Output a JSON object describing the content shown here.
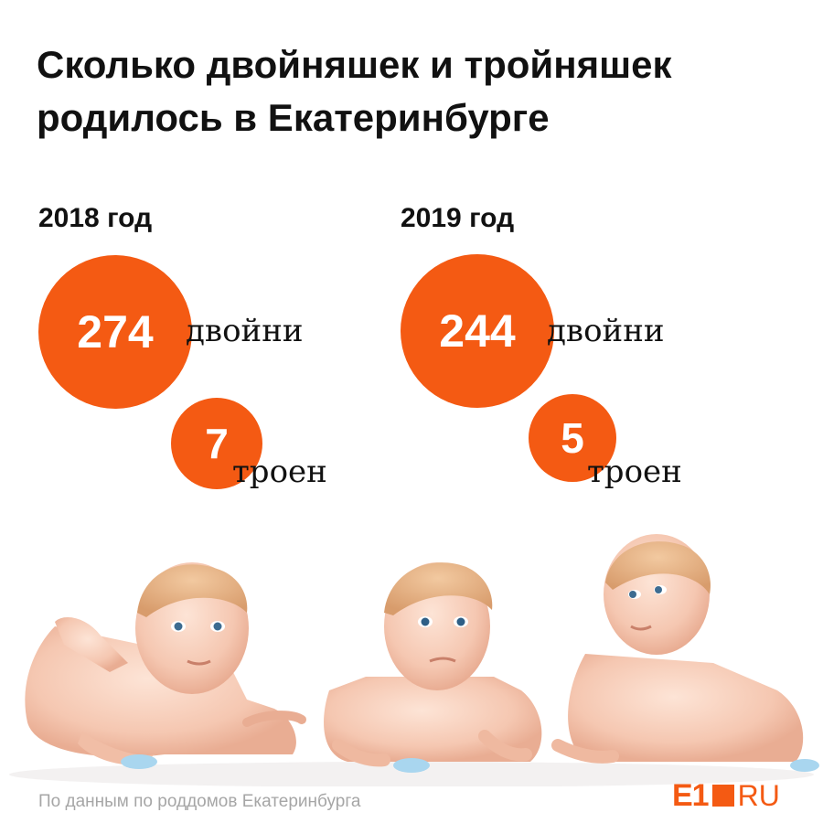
{
  "title_lines": [
    "Сколько двойняшек и тройняшек",
    "родилось в Екатеринбурге"
  ],
  "chart_data": {
    "type": "bubble",
    "groups": [
      {
        "year": "2018 год",
        "items": [
          {
            "value": 274,
            "value_label": "274",
            "label": "двойни"
          },
          {
            "value": 7,
            "value_label": "7",
            "label": "троен"
          }
        ]
      },
      {
        "year": "2019 год",
        "items": [
          {
            "value": 244,
            "value_label": "244",
            "label": "двойни"
          },
          {
            "value": 5,
            "value_label": "5",
            "label": "троен"
          }
        ]
      }
    ]
  },
  "source": "По данным по роддомов Екатеринбурга",
  "logo": {
    "e1": "E1",
    "ru": "RU"
  },
  "photo": {
    "icon": "three-babies-photo"
  },
  "colors": {
    "accent": "#f45a13",
    "text": "#111111",
    "muted": "#a6a6a6"
  }
}
